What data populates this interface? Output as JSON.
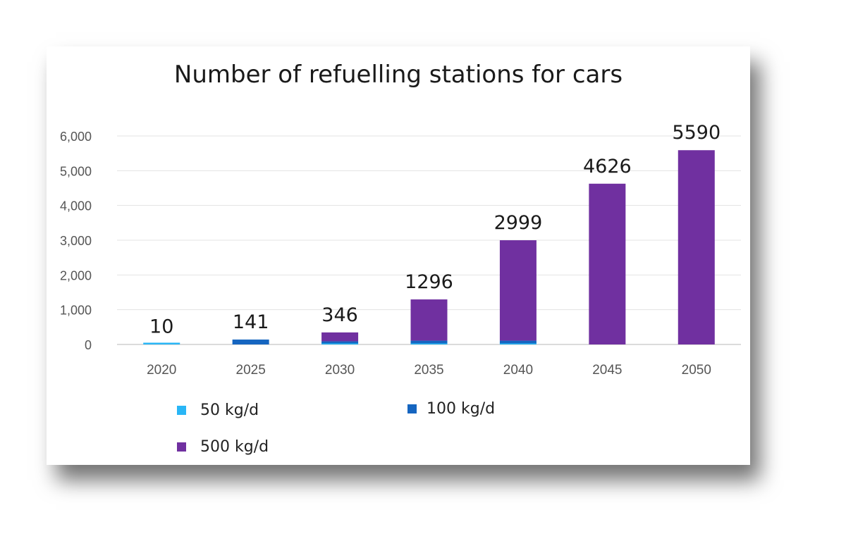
{
  "chart_data": {
    "type": "bar",
    "stacked": true,
    "title": "Number of refuelling stations for cars",
    "xlabel": "",
    "ylabel": "",
    "ylim": [
      0,
      6000
    ],
    "yticks": [
      0,
      1000,
      2000,
      3000,
      4000,
      5000,
      6000
    ],
    "ytick_labels": [
      "0",
      "1,000",
      "2,000",
      "3,000",
      "4,000",
      "5,000",
      "6,000"
    ],
    "grid": true,
    "legend_position": "bottom",
    "categories": [
      "2020",
      "2025",
      "2030",
      "2035",
      "2040",
      "2045",
      "2050"
    ],
    "series": [
      {
        "name": "50 kg/d",
        "color": "#29b6f6",
        "values": [
          10,
          0,
          30,
          30,
          30,
          0,
          0
        ]
      },
      {
        "name": "100 kg/d",
        "color": "#1565c0",
        "values": [
          0,
          141,
          60,
          80,
          80,
          0,
          0
        ]
      },
      {
        "name": "500 kg/d",
        "color": "#7030a0",
        "values": [
          0,
          0,
          256,
          1186,
          2889,
          4626,
          5590
        ]
      }
    ],
    "totals": [
      "10",
      "141",
      "346",
      "1296",
      "2999",
      "4626",
      "5590"
    ]
  }
}
